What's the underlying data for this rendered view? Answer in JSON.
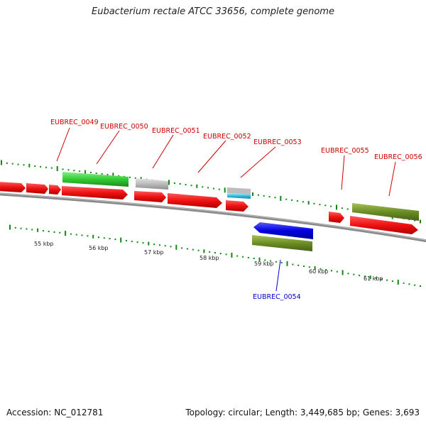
{
  "title": "Eubacterium rectale ATCC 33656, complete genome",
  "footer": {
    "accession": "Accession: NC_012781",
    "summary": "Topology: circular; Length: 3,449,685 bp; Genes: 3,693"
  },
  "colors": {
    "cds": "#ee1111",
    "label": "#cc0000",
    "label_reverse": "#0000cc",
    "tick": "#118811",
    "backbone": "#808080"
  },
  "kbp_labels": [
    "55 kbp",
    "56 kbp",
    "57 kbp",
    "58 kbp",
    "59 kbp",
    "60 kbp",
    "61 kbp"
  ],
  "genes": [
    {
      "locus": "EUBREC_0049",
      "strand": "forward",
      "color": "#ee1111"
    },
    {
      "locus": "EUBREC_0050",
      "strand": "forward",
      "color": "#33cc33"
    },
    {
      "locus": "EUBREC_0051",
      "strand": "forward",
      "color": "#bbbbbb"
    },
    {
      "locus": "EUBREC_0052",
      "strand": "forward",
      "color": "#ee1111"
    },
    {
      "locus": "EUBREC_0053",
      "strand": "forward",
      "color": "#33bbdd"
    },
    {
      "locus": "EUBREC_0054",
      "strand": "reverse",
      "color": "#0000dd"
    },
    {
      "locus": "EUBREC_0055",
      "strand": "forward",
      "color": "#ee1111"
    },
    {
      "locus": "EUBREC_0056",
      "strand": "forward",
      "color": "#6b8e23"
    }
  ]
}
